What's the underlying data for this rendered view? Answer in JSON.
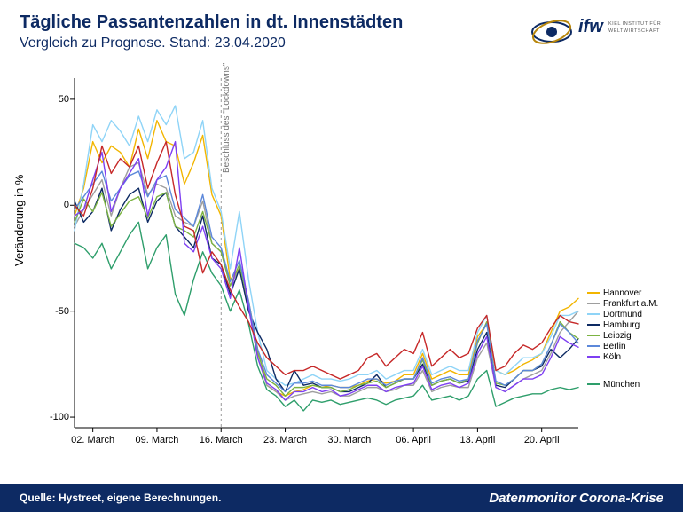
{
  "header": {
    "title": "Tägliche Passantenzahlen in dt. Innenstädten",
    "subtitle": "Vergleich zu Prognose. Stand: 23.04.2020",
    "logo_text_main": "ifw",
    "logo_text_sub1": "KIEL INSTITUT FÜR",
    "logo_text_sub2": "WELTWIRTSCHAFT"
  },
  "footer": {
    "source": "Quelle: Hystreet, eigene Berechnungen.",
    "brand": "Datenmonitor Corona-Krise",
    "bg_color": "#0d2a63"
  },
  "chart": {
    "type": "line",
    "background_color": "#ffffff",
    "axis_color": "#000000",
    "annotation_line_color": "#808080",
    "ylabel": "Veränderung in %",
    "ylim": [
      -105,
      60
    ],
    "yticks": [
      -100,
      -50,
      0,
      50
    ],
    "x_count": 56,
    "xlim": [
      0,
      55
    ],
    "xticks": [
      {
        "pos": 2,
        "label": "02. March"
      },
      {
        "pos": 9,
        "label": "09. March"
      },
      {
        "pos": 16,
        "label": "16. March"
      },
      {
        "pos": 23,
        "label": "23. March"
      },
      {
        "pos": 30,
        "label": "30. March"
      },
      {
        "pos": 37,
        "label": "06. April"
      },
      {
        "pos": 44,
        "label": "13. April"
      },
      {
        "pos": 51,
        "label": "20. April"
      }
    ],
    "annotation": {
      "text": "Beschluss des \"Lockdowns\"",
      "x": 16
    },
    "line_width": 1.4,
    "series": [
      {
        "name": "Hannover",
        "color": "#f2b500",
        "values": [
          -5,
          8,
          30,
          20,
          28,
          25,
          18,
          36,
          22,
          40,
          30,
          28,
          10,
          20,
          33,
          5,
          -5,
          -35,
          -30,
          -45,
          -68,
          -85,
          -88,
          -90,
          -88,
          -87,
          -85,
          -86,
          -85,
          -86,
          -86,
          -85,
          -83,
          -82,
          -84,
          -83,
          -80,
          -80,
          -70,
          -82,
          -80,
          -78,
          -80,
          -80,
          -62,
          -56,
          -78,
          -80,
          -78,
          -75,
          -73,
          -70,
          -60,
          -50,
          -48,
          -44
        ]
      },
      {
        "name": "Frankfurt a.M.",
        "color": "#9e9e9e",
        "values": [
          -10,
          -2,
          5,
          12,
          -5,
          8,
          18,
          20,
          5,
          10,
          8,
          -5,
          -8,
          -10,
          2,
          -18,
          -22,
          -38,
          -30,
          -48,
          -72,
          -85,
          -88,
          -92,
          -90,
          -89,
          -88,
          -89,
          -88,
          -90,
          -90,
          -88,
          -86,
          -86,
          -88,
          -87,
          -85,
          -85,
          -78,
          -88,
          -86,
          -85,
          -86,
          -86,
          -72,
          -65,
          -86,
          -88,
          -85,
          -82,
          -80,
          -78,
          -70,
          -60,
          -55,
          -50
        ]
      },
      {
        "name": "Dortmund",
        "color": "#8fd4f7",
        "values": [
          -12,
          10,
          38,
          30,
          40,
          35,
          28,
          42,
          30,
          45,
          38,
          47,
          22,
          25,
          40,
          8,
          -3,
          -30,
          -3,
          -35,
          -60,
          -78,
          -82,
          -85,
          -84,
          -82,
          -80,
          -82,
          -82,
          -83,
          -82,
          -80,
          -80,
          -78,
          -82,
          -80,
          -78,
          -78,
          -68,
          -80,
          -78,
          -76,
          -78,
          -78,
          -60,
          -52,
          -78,
          -80,
          -76,
          -72,
          -72,
          -70,
          -62,
          -52,
          -52,
          -50
        ]
      },
      {
        "name": "Hamburg",
        "color": "#0d2a63",
        "values": [
          2,
          -8,
          -3,
          8,
          -12,
          -2,
          5,
          8,
          -8,
          2,
          6,
          -10,
          -15,
          -20,
          -5,
          -25,
          -28,
          -42,
          -30,
          -50,
          -60,
          -68,
          -82,
          -88,
          -78,
          -85,
          -84,
          -86,
          -86,
          -88,
          -88,
          -86,
          -84,
          -80,
          -86,
          -84,
          -82,
          -82,
          -75,
          -85,
          -83,
          -82,
          -84,
          -83,
          -68,
          -60,
          -85,
          -86,
          -82,
          -78,
          -78,
          -76,
          -68,
          -72,
          -68,
          -63
        ]
      },
      {
        "name": "Leipzig",
        "color": "#7cb342",
        "values": [
          -8,
          3,
          -3,
          6,
          -10,
          -4,
          2,
          4,
          -6,
          4,
          6,
          -10,
          -12,
          -15,
          -3,
          -18,
          -22,
          -38,
          -28,
          -46,
          -70,
          -82,
          -85,
          -90,
          -86,
          -86,
          -85,
          -86,
          -86,
          -88,
          -87,
          -85,
          -84,
          -83,
          -86,
          -84,
          -82,
          -82,
          -73,
          -85,
          -83,
          -82,
          -84,
          -82,
          -65,
          -55,
          -84,
          -85,
          -82,
          -78,
          -78,
          -75,
          -66,
          -55,
          -60,
          -63
        ]
      },
      {
        "name": "Berlin",
        "color": "#5c88da",
        "values": [
          -2,
          4,
          10,
          16,
          2,
          8,
          14,
          16,
          4,
          12,
          14,
          -2,
          -6,
          -10,
          5,
          -15,
          -20,
          -36,
          -26,
          -45,
          -68,
          -80,
          -84,
          -88,
          -84,
          -84,
          -83,
          -85,
          -85,
          -86,
          -86,
          -84,
          -82,
          -82,
          -85,
          -83,
          -82,
          -82,
          -72,
          -84,
          -82,
          -81,
          -83,
          -82,
          -64,
          -56,
          -83,
          -85,
          -82,
          -78,
          -78,
          -75,
          -66,
          -56,
          -60,
          -65
        ]
      },
      {
        "name": "Köln",
        "color": "#7e3ff2",
        "values": [
          -5,
          -2,
          12,
          25,
          -3,
          8,
          15,
          22,
          -5,
          12,
          18,
          30,
          -18,
          -22,
          -10,
          -25,
          -30,
          -44,
          -20,
          -48,
          -72,
          -84,
          -87,
          -92,
          -88,
          -88,
          -86,
          -88,
          -87,
          -90,
          -89,
          -87,
          -85,
          -85,
          -88,
          -86,
          -85,
          -84,
          -76,
          -87,
          -85,
          -84,
          -86,
          -84,
          -70,
          -62,
          -86,
          -88,
          -85,
          -82,
          -82,
          -80,
          -72,
          -62,
          -65,
          -67
        ]
      },
      {
        "name": "München",
        "color": "#2e9e6b",
        "values": [
          -18,
          -20,
          -25,
          -18,
          -30,
          -22,
          -14,
          -8,
          -30,
          -20,
          -14,
          -42,
          -52,
          -35,
          -22,
          -32,
          -38,
          -50,
          -40,
          -56,
          -76,
          -87,
          -90,
          -95,
          -92,
          -97,
          -92,
          -93,
          -92,
          -94,
          -93,
          -92,
          -91,
          -92,
          -94,
          -92,
          -91,
          -90,
          -85,
          -92,
          -91,
          -90,
          -92,
          -90,
          -82,
          -78,
          -95,
          -93,
          -91,
          -90,
          -89,
          -89,
          -87,
          -86,
          -87,
          -86
        ]
      },
      {
        "name": "_red",
        "color": "#c62828",
        "values": [
          0,
          -5,
          8,
          28,
          15,
          22,
          18,
          28,
          8,
          20,
          30,
          5,
          -10,
          -12,
          -32,
          -22,
          -28,
          -40,
          -48,
          -55,
          -65,
          -72,
          -76,
          -80,
          -78,
          -78,
          -76,
          -78,
          -80,
          -82,
          -80,
          -78,
          -72,
          -70,
          -76,
          -72,
          -68,
          -70,
          -60,
          -76,
          -72,
          -68,
          -72,
          -70,
          -58,
          -52,
          -78,
          -76,
          -70,
          -66,
          -68,
          -65,
          -58,
          -52,
          -55,
          -56
        ]
      }
    ]
  },
  "legend_items": [
    {
      "label": "Hannover",
      "color": "#f2b500"
    },
    {
      "label": "Frankfurt a.M.",
      "color": "#9e9e9e"
    },
    {
      "label": "Dortmund",
      "color": "#8fd4f7"
    },
    {
      "label": "Hamburg",
      "color": "#0d2a63"
    },
    {
      "label": "Leipzig",
      "color": "#7cb342"
    },
    {
      "label": "Berlin",
      "color": "#5c88da"
    },
    {
      "label": "Köln",
      "color": "#7e3ff2"
    },
    {
      "label": "München",
      "color": "#2e9e6b"
    }
  ]
}
